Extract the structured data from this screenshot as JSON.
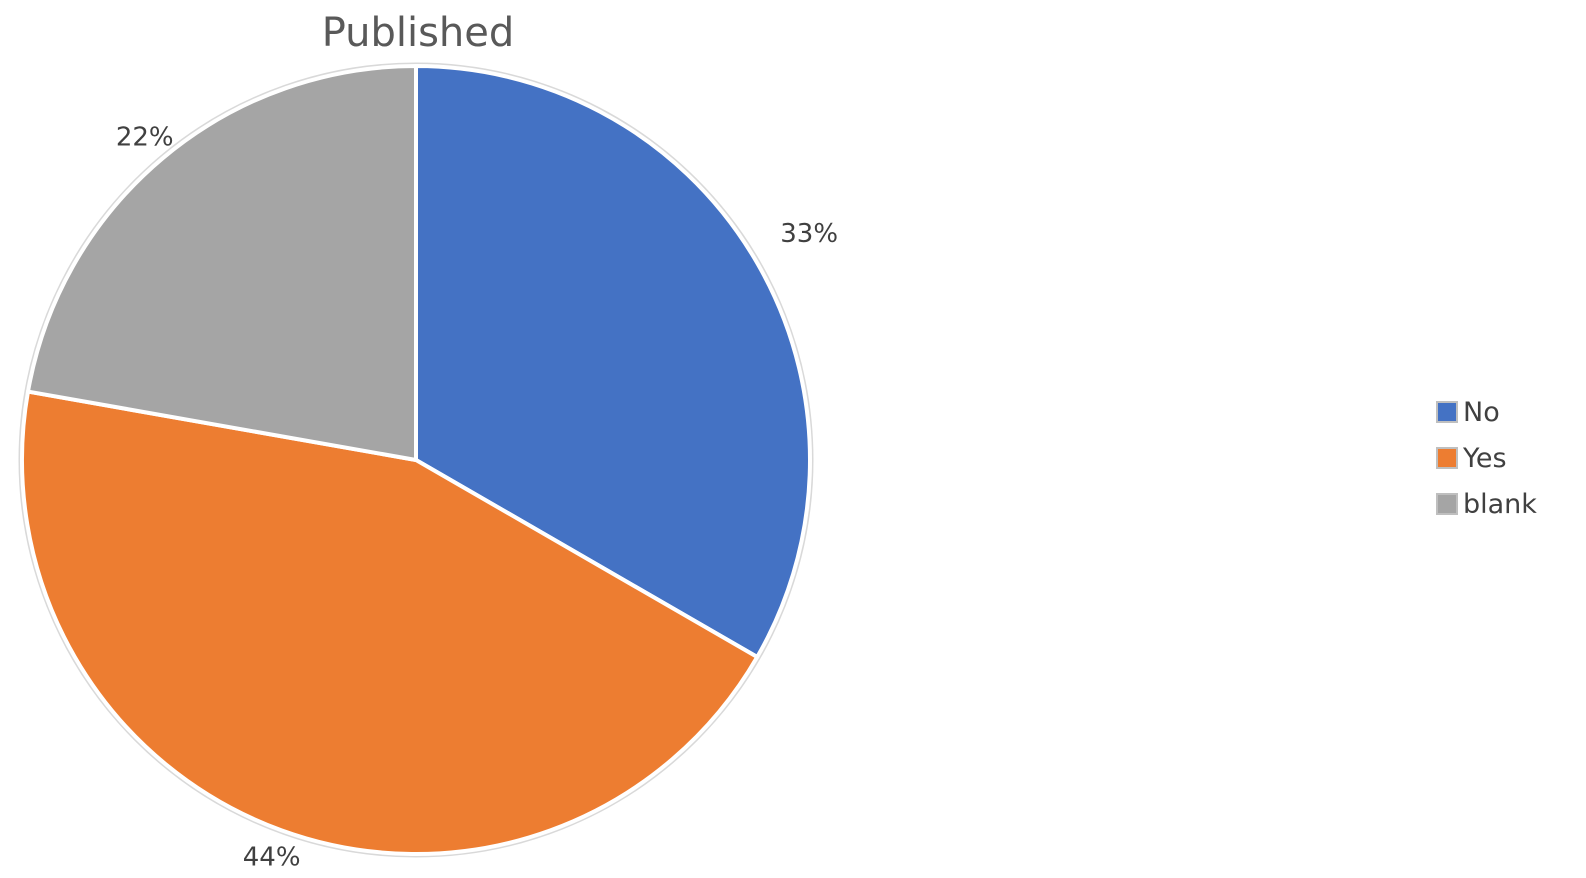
{
  "chart_data": {
    "type": "pie",
    "title": "Published",
    "categories": [
      "No",
      "Yes",
      "blank"
    ],
    "values": [
      33,
      44,
      22
    ],
    "labels": [
      "33%",
      "44%",
      "22%"
    ],
    "colors": [
      "#4472C4",
      "#ED7D31",
      "#A5A5A5"
    ],
    "start_angle_deg": 0,
    "direction": "clockwise",
    "legend": {
      "position": "right",
      "entries": [
        "No",
        "Yes",
        "blank"
      ]
    }
  }
}
